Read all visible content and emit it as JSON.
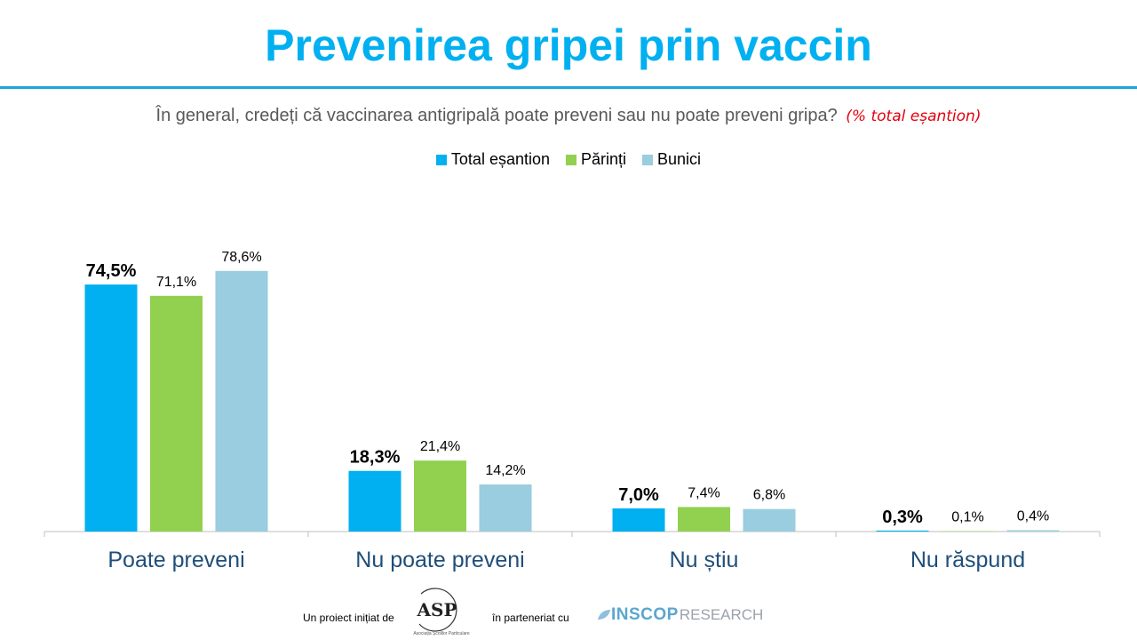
{
  "title": "Prevenirea gripei prin vaccin",
  "subtitle": {
    "question": "În general, credeți că vaccinarea antigripală poate preveni sau nu poate preveni gripa?",
    "note": "(% total eșantion)"
  },
  "colors": {
    "title": "#00b0f0",
    "note": "#e3000f",
    "category_label": "#1f4e79"
  },
  "chart_data": {
    "type": "bar",
    "categories": [
      "Poate preveni",
      "Nu poate preveni",
      "Nu știu",
      "Nu răspund"
    ],
    "series": [
      {
        "name": "Total eșantion",
        "color": "#00b0f0",
        "values": [
          74.5,
          18.3,
          7.0,
          0.3
        ],
        "labels": [
          "74,5%",
          "18,3%",
          "7,0%",
          "0,3%"
        ],
        "bold": true
      },
      {
        "name": "Părinți",
        "color": "#92d050",
        "values": [
          71.1,
          21.4,
          7.4,
          0.1
        ],
        "labels": [
          "71,1%",
          "21,4%",
          "7,4%",
          "0,1%"
        ],
        "bold": false
      },
      {
        "name": "Bunici",
        "color": "#99cddf",
        "values": [
          78.6,
          14.2,
          6.8,
          0.4
        ],
        "labels": [
          "78,6%",
          "14,2%",
          "6,8%",
          "0,4%"
        ],
        "bold": false
      }
    ],
    "ylim": [
      0,
      100
    ],
    "grid": false,
    "legend": "top-center"
  },
  "footer": {
    "initiated_by": "Un proiect inițiat de",
    "asp_mark": "ASP",
    "asp_caption": "Asociația Școlilor Particulare",
    "partner": "în parteneriat cu",
    "inscop_strong": "INSCOP",
    "inscop_light": "RESEARCH"
  }
}
